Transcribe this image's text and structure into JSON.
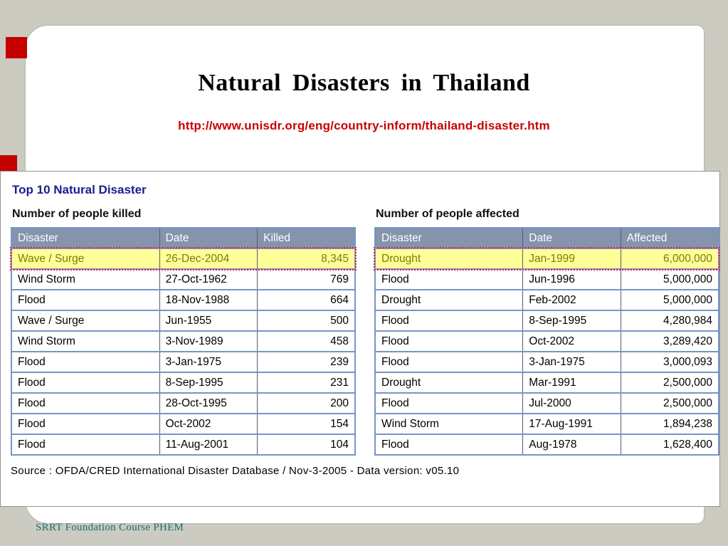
{
  "slide": {
    "title": "Natural Disasters in Thailand",
    "url": "http://www.unisdr.org/eng/country-inform/thailand-disaster.htm",
    "footer": "SRRT Foundation Course PHEM"
  },
  "content": {
    "heading": "Top 10 Natural Disaster",
    "source": "Source : OFDA/CRED International Disaster Database / Nov-3-2005 - Data version: v05.10",
    "tables": [
      {
        "title": "Number of people killed",
        "columns": [
          "Disaster",
          "Date",
          "Killed"
        ],
        "rows": [
          [
            "Wave / Surge",
            "26-Dec-2004",
            "8,345"
          ],
          [
            "Wind Storm",
            "27-Oct-1962",
            "769"
          ],
          [
            "Flood",
            "18-Nov-1988",
            "664"
          ],
          [
            "Wave / Surge",
            "Jun-1955",
            "500"
          ],
          [
            "Wind Storm",
            "3-Nov-1989",
            "458"
          ],
          [
            "Flood",
            "3-Jan-1975",
            "239"
          ],
          [
            "Flood",
            "8-Sep-1995",
            "231"
          ],
          [
            "Flood",
            "28-Oct-1995",
            "200"
          ],
          [
            "Flood",
            "Oct-2002",
            "154"
          ],
          [
            "Flood",
            "11-Aug-2001",
            "104"
          ]
        ],
        "highlight_row": 0
      },
      {
        "title": "Number of people affected",
        "columns": [
          "Disaster",
          "Date",
          "Affected"
        ],
        "rows": [
          [
            "Drought",
            "Jan-1999",
            "6,000,000"
          ],
          [
            "Flood",
            "Jun-1996",
            "5,000,000"
          ],
          [
            "Drought",
            "Feb-2002",
            "5,000,000"
          ],
          [
            "Flood",
            "8-Sep-1995",
            "4,280,984"
          ],
          [
            "Flood",
            "Oct-2002",
            "3,289,420"
          ],
          [
            "Flood",
            "3-Jan-1975",
            "3,000,093"
          ],
          [
            "Drought",
            "Mar-1991",
            "2,500,000"
          ],
          [
            "Flood",
            "Jul-2000",
            "2,500,000"
          ],
          [
            "Wind Storm",
            "17-Aug-1991",
            "1,894,238"
          ],
          [
            "Flood",
            "Aug-1978",
            "1,628,400"
          ]
        ],
        "highlight_row": 0
      }
    ]
  },
  "colors": {
    "background_gray": "#cbcbc2",
    "accent_red": "#c40000",
    "url_red": "#cc0000",
    "heading_navy": "#1b1b8f",
    "table_header_bg": "#8494ad",
    "table_border_blue": "#7695c5",
    "highlight_yellow": "#ffff99",
    "highlight_dotted_red": "#f1174c",
    "footer_teal": "#1d6f6f"
  }
}
